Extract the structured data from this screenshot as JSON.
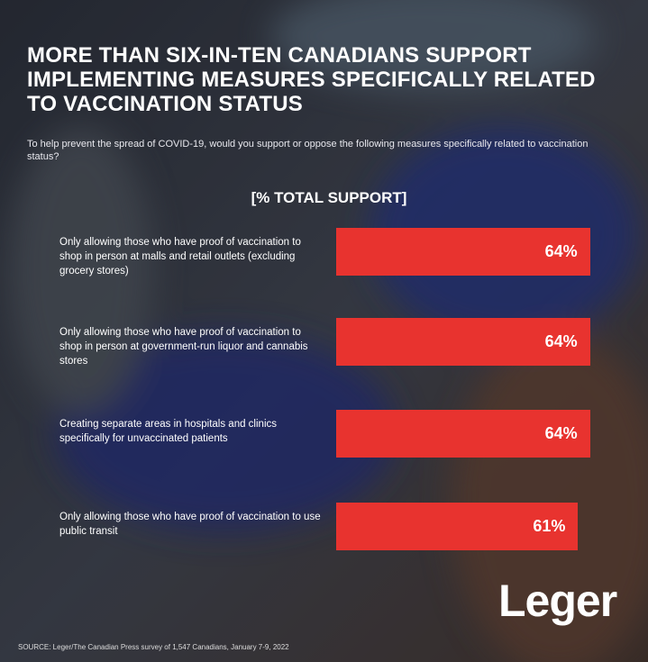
{
  "chart_data": {
    "type": "bar",
    "orientation": "horizontal",
    "title": "MORE THAN SIX-IN-TEN CANADIANS SUPPORT IMPLEMENTING MEASURES SPECIFICALLY RELATED TO VACCINATION STATUS",
    "subtitle": "To help prevent the spread of COVID-19, would you support or oppose the following measures specifically related to vaccination status?",
    "header": "[% TOTAL SUPPORT]",
    "categories": [
      "Only allowing those who have proof of vaccination to shop in person at malls and retail outlets (excluding grocery stores)",
      "Only allowing those who have proof of vaccination to shop in person at government-run liquor and cannabis stores",
      "Creating separate areas in hospitals and clinics specifically for unvaccinated patients",
      "Only allowing those who have proof of vaccination to use public transit"
    ],
    "values": [
      64,
      64,
      64,
      61
    ],
    "value_labels": [
      "64%",
      "64%",
      "64%",
      "61%"
    ],
    "color": "#e8332f",
    "source": "SOURCE: Leger/The Canadian Press survey of 1,547 Canadians, January 7-9, 2022",
    "logo": "Leger"
  }
}
